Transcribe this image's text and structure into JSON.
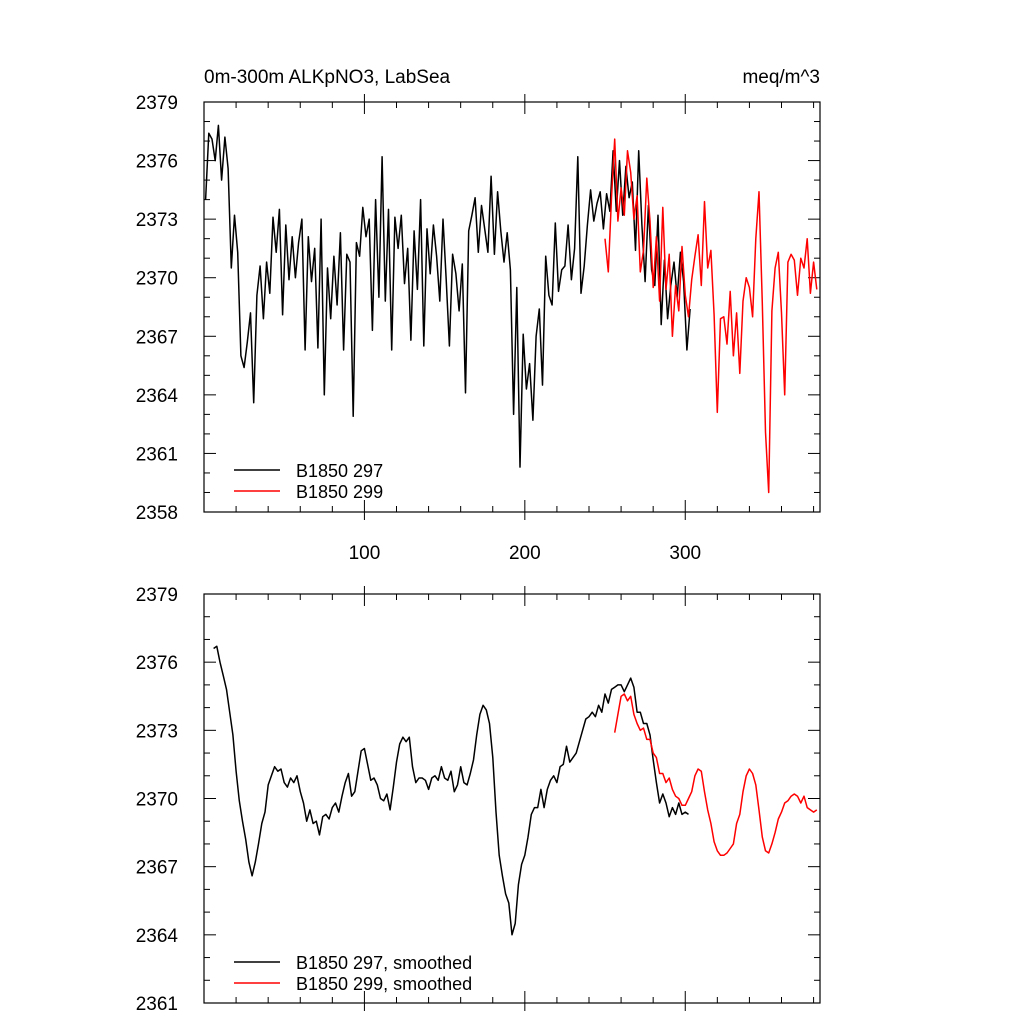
{
  "chart_data": [
    {
      "type": "line",
      "title": "0m-300m ALKpNO3, LabSea",
      "units": "meq/m^3",
      "xlabel": "",
      "ylabel": "",
      "xlim": [
        0,
        384
      ],
      "ylim": [
        2358,
        2379
      ],
      "yticks": [
        2358,
        2361,
        2364,
        2367,
        2370,
        2373,
        2376,
        2379
      ],
      "xticks": [
        100,
        200,
        300
      ],
      "legend_position": "bottom-left",
      "series": [
        {
          "name": "B1850 297",
          "color": "#000000",
          "x": [
            1,
            3,
            5,
            7,
            9,
            11,
            13,
            15,
            17,
            19,
            21,
            23,
            25,
            27,
            29,
            31,
            33,
            35,
            37,
            39,
            41,
            43,
            45,
            47,
            49,
            51,
            53,
            55,
            57,
            59,
            61,
            63,
            65,
            67,
            69,
            71,
            73,
            75,
            77,
            79,
            81,
            83,
            85,
            87,
            89,
            91,
            93,
            95,
            97,
            99,
            101,
            103,
            105,
            107,
            109,
            111,
            113,
            115,
            117,
            119,
            121,
            123,
            125,
            127,
            129,
            131,
            133,
            135,
            137,
            139,
            141,
            143,
            145,
            147,
            149,
            151,
            153,
            155,
            157,
            159,
            161,
            163,
            165,
            167,
            169,
            171,
            173,
            175,
            177,
            179,
            181,
            183,
            185,
            187,
            189,
            191,
            193,
            195,
            197,
            199,
            201,
            203,
            205,
            207,
            209,
            211,
            213,
            215,
            217,
            219,
            221,
            223,
            225,
            227,
            229,
            231,
            233,
            235,
            237,
            239,
            241,
            243,
            245,
            247,
            249,
            251,
            253,
            255,
            257,
            259,
            261,
            263,
            265,
            267,
            269,
            271,
            273,
            275,
            277,
            279,
            281,
            283,
            285,
            287,
            289,
            291,
            293,
            295,
            297,
            299,
            301,
            303
          ],
          "values": [
            2374.0,
            2377.4,
            2377.1,
            2376.0,
            2377.8,
            2375.0,
            2377.2,
            2375.6,
            2370.5,
            2373.2,
            2371.3,
            2366.0,
            2365.4,
            2366.7,
            2368.2,
            2363.6,
            2369.1,
            2370.6,
            2367.9,
            2370.8,
            2369.2,
            2373.1,
            2371.3,
            2373.5,
            2368.1,
            2372.7,
            2369.9,
            2372.1,
            2370.0,
            2371.8,
            2373.0,
            2366.3,
            2372.1,
            2369.8,
            2371.5,
            2366.4,
            2373.0,
            2364.0,
            2370.5,
            2367.9,
            2371.1,
            2368.6,
            2372.3,
            2366.3,
            2371.2,
            2370.8,
            2362.9,
            2371.8,
            2371.1,
            2373.6,
            2372.1,
            2373.0,
            2367.3,
            2374.0,
            2369.0,
            2376.2,
            2368.8,
            2373.5,
            2366.3,
            2373.1,
            2371.5,
            2373.2,
            2369.7,
            2371.5,
            2366.8,
            2372.4,
            2369.4,
            2374.0,
            2366.5,
            2372.5,
            2370.2,
            2372.7,
            2371.1,
            2368.8,
            2373.0,
            2369.9,
            2366.5,
            2371.2,
            2370.2,
            2368.3,
            2370.7,
            2364.1,
            2372.4,
            2373.2,
            2374.1,
            2371.3,
            2373.7,
            2372.5,
            2371.3,
            2375.2,
            2371.2,
            2374.4,
            2372.4,
            2370.8,
            2372.3,
            2370.4,
            2363.0,
            2369.5,
            2360.3,
            2367.1,
            2364.3,
            2365.6,
            2362.7,
            2367.0,
            2368.4,
            2364.5,
            2371.1,
            2369.1,
            2368.6,
            2372.8,
            2369.3,
            2370.4,
            2370.6,
            2372.7,
            2369.9,
            2371.5,
            2376.2,
            2369.2,
            2370.6,
            2372.7,
            2374.5,
            2372.9,
            2373.8,
            2374.4,
            2372.5,
            2374.3,
            2373.4,
            2376.5,
            2373.4,
            2376.0,
            2373.2,
            2375.7,
            2374.1,
            2374.9,
            2371.4,
            2376.5,
            2372.7,
            2369.8,
            2373.7,
            2370.4,
            2369.6,
            2373.2,
            2367.6,
            2370.9,
            2367.9,
            2369.6,
            2370.8,
            2369.0,
            2371.3,
            2369.8,
            2366.3,
            2368.4
          ]
        },
        {
          "name": "B1850 299",
          "color": "#ff0000",
          "x": [
            250,
            252,
            254,
            256,
            258,
            260,
            262,
            264,
            266,
            268,
            270,
            272,
            274,
            276,
            278,
            280,
            282,
            284,
            286,
            288,
            290,
            292,
            294,
            296,
            298,
            300,
            302,
            304,
            306,
            308,
            310,
            312,
            314,
            316,
            318,
            320,
            322,
            324,
            326,
            328,
            330,
            332,
            334,
            336,
            338,
            340,
            342,
            344,
            346,
            348,
            350,
            352,
            354,
            356,
            358,
            360,
            362,
            364,
            366,
            368,
            370,
            372,
            374,
            376,
            378,
            380,
            382
          ],
          "values": [
            2372.0,
            2370.3,
            2374.1,
            2377.1,
            2372.9,
            2374.6,
            2373.2,
            2376.5,
            2375.4,
            2373.0,
            2374.2,
            2370.3,
            2371.4,
            2375.1,
            2372.9,
            2369.5,
            2372.1,
            2368.8,
            2373.6,
            2369.4,
            2371.2,
            2367.0,
            2369.6,
            2368.3,
            2371.6,
            2369.1,
            2368.0,
            2369.9,
            2371.1,
            2372.2,
            2369.6,
            2373.9,
            2370.5,
            2371.4,
            2368.1,
            2363.1,
            2367.9,
            2368.0,
            2366.6,
            2369.3,
            2366.0,
            2368.2,
            2365.1,
            2368.8,
            2370.0,
            2369.5,
            2368.0,
            2372.0,
            2374.4,
            2368.7,
            2362.1,
            2359.0,
            2368.3,
            2370.5,
            2371.3,
            2368.2,
            2364.0,
            2370.8,
            2371.2,
            2370.9,
            2369.1,
            2371.0,
            2370.5,
            2372.0,
            2369.2,
            2370.8,
            2369.4
          ]
        }
      ]
    },
    {
      "type": "line",
      "title": "",
      "xlabel": "",
      "ylabel": "",
      "xlim": [
        0,
        384
      ],
      "ylim": [
        2361,
        2379
      ],
      "yticks": [
        2361,
        2364,
        2367,
        2370,
        2373,
        2376,
        2379
      ],
      "legend_position": "bottom-left",
      "series": [
        {
          "name": "B1850 297, smoothed",
          "color": "#000000",
          "x": [
            6,
            8,
            10,
            12,
            14,
            16,
            18,
            20,
            22,
            24,
            26,
            28,
            30,
            32,
            34,
            36,
            38,
            40,
            42,
            44,
            46,
            48,
            50,
            52,
            54,
            56,
            58,
            60,
            62,
            64,
            66,
            68,
            70,
            72,
            74,
            76,
            78,
            80,
            82,
            84,
            86,
            88,
            90,
            92,
            94,
            96,
            98,
            100,
            102,
            104,
            106,
            108,
            110,
            112,
            114,
            116,
            118,
            120,
            122,
            124,
            126,
            128,
            130,
            132,
            134,
            136,
            138,
            140,
            142,
            144,
            146,
            148,
            150,
            152,
            154,
            156,
            158,
            160,
            162,
            164,
            166,
            168,
            170,
            172,
            174,
            176,
            178,
            180,
            182,
            184,
            186,
            188,
            190,
            192,
            194,
            196,
            198,
            200,
            202,
            204,
            206,
            208,
            210,
            212,
            214,
            216,
            218,
            220,
            222,
            224,
            226,
            228,
            230,
            232,
            234,
            236,
            238,
            240,
            242,
            244,
            246,
            248,
            250,
            252,
            254,
            256,
            258,
            260,
            262,
            264,
            266,
            268,
            270,
            272,
            274,
            276,
            278,
            280,
            282,
            284,
            286,
            288,
            290,
            292,
            294,
            296,
            298,
            300,
            302
          ],
          "values": [
            2376.6,
            2376.7,
            2376.0,
            2375.4,
            2374.8,
            2373.8,
            2372.8,
            2371.2,
            2369.9,
            2369.0,
            2368.2,
            2367.2,
            2366.6,
            2367.2,
            2368.0,
            2368.9,
            2369.4,
            2370.6,
            2371.0,
            2371.4,
            2371.2,
            2371.3,
            2370.7,
            2370.5,
            2370.9,
            2370.7,
            2371.0,
            2370.3,
            2369.8,
            2369.0,
            2369.5,
            2368.9,
            2369.0,
            2368.4,
            2369.2,
            2369.3,
            2369.1,
            2369.6,
            2369.8,
            2369.4,
            2370.1,
            2370.7,
            2371.1,
            2370.1,
            2370.3,
            2371.2,
            2372.1,
            2372.2,
            2371.5,
            2370.8,
            2370.9,
            2370.6,
            2370.0,
            2369.9,
            2370.2,
            2369.5,
            2370.5,
            2371.6,
            2372.4,
            2372.7,
            2372.5,
            2372.7,
            2371.4,
            2370.7,
            2370.9,
            2370.9,
            2370.8,
            2370.4,
            2370.9,
            2371.0,
            2370.8,
            2371.4,
            2370.9,
            2370.8,
            2371.2,
            2370.3,
            2370.6,
            2371.4,
            2370.7,
            2370.6,
            2371.1,
            2371.7,
            2372.8,
            2373.7,
            2374.1,
            2373.9,
            2373.3,
            2371.8,
            2369.4,
            2367.5,
            2366.6,
            2365.8,
            2365.4,
            2364.0,
            2364.5,
            2366.2,
            2367.1,
            2367.5,
            2368.3,
            2369.3,
            2369.6,
            2369.6,
            2370.4,
            2369.6,
            2370.4,
            2370.8,
            2371.0,
            2370.7,
            2371.4,
            2371.5,
            2372.3,
            2371.6,
            2371.8,
            2372.0,
            2372.5,
            2373.0,
            2373.5,
            2373.6,
            2373.8,
            2373.6,
            2374.1,
            2373.8,
            2374.6,
            2374.2,
            2374.8,
            2374.9,
            2375.0,
            2375.0,
            2374.7,
            2375.0,
            2375.3,
            2374.9,
            2373.8,
            2373.8,
            2373.3,
            2373.3,
            2372.8,
            2371.7,
            2370.7,
            2369.8,
            2370.2,
            2369.8,
            2369.2,
            2369.6,
            2369.3,
            2369.8,
            2369.3,
            2369.4,
            2369.3
          ]
        },
        {
          "name": "B1850 299, smoothed",
          "color": "#ff0000",
          "x": [
            256,
            258,
            260,
            262,
            264,
            266,
            268,
            270,
            272,
            274,
            276,
            278,
            280,
            282,
            284,
            286,
            288,
            290,
            292,
            294,
            296,
            298,
            300,
            302,
            304,
            306,
            308,
            310,
            312,
            314,
            316,
            318,
            320,
            322,
            324,
            326,
            328,
            330,
            332,
            334,
            336,
            338,
            340,
            342,
            344,
            346,
            348,
            350,
            352,
            354,
            356,
            358,
            360,
            362,
            364,
            366,
            368,
            370,
            372,
            374,
            376,
            378,
            380,
            382
          ],
          "values": [
            2372.9,
            2373.7,
            2374.5,
            2374.6,
            2374.3,
            2374.5,
            2373.7,
            2373.3,
            2373.0,
            2373.1,
            2372.6,
            2372.6,
            2372.0,
            2371.8,
            2371.1,
            2371.1,
            2370.7,
            2370.9,
            2370.4,
            2370.1,
            2370.0,
            2369.7,
            2369.7,
            2370.0,
            2370.3,
            2371.0,
            2371.3,
            2371.2,
            2370.3,
            2369.5,
            2368.9,
            2368.1,
            2367.7,
            2367.5,
            2367.5,
            2367.6,
            2367.8,
            2368.0,
            2368.9,
            2369.3,
            2370.3,
            2371.0,
            2371.3,
            2371.1,
            2370.6,
            2369.5,
            2368.3,
            2367.7,
            2367.6,
            2368.0,
            2368.5,
            2369.1,
            2369.4,
            2369.8,
            2369.9,
            2370.1,
            2370.2,
            2370.1,
            2369.8,
            2370.1,
            2369.6,
            2369.5,
            2369.4,
            2369.5
          ]
        }
      ]
    }
  ]
}
